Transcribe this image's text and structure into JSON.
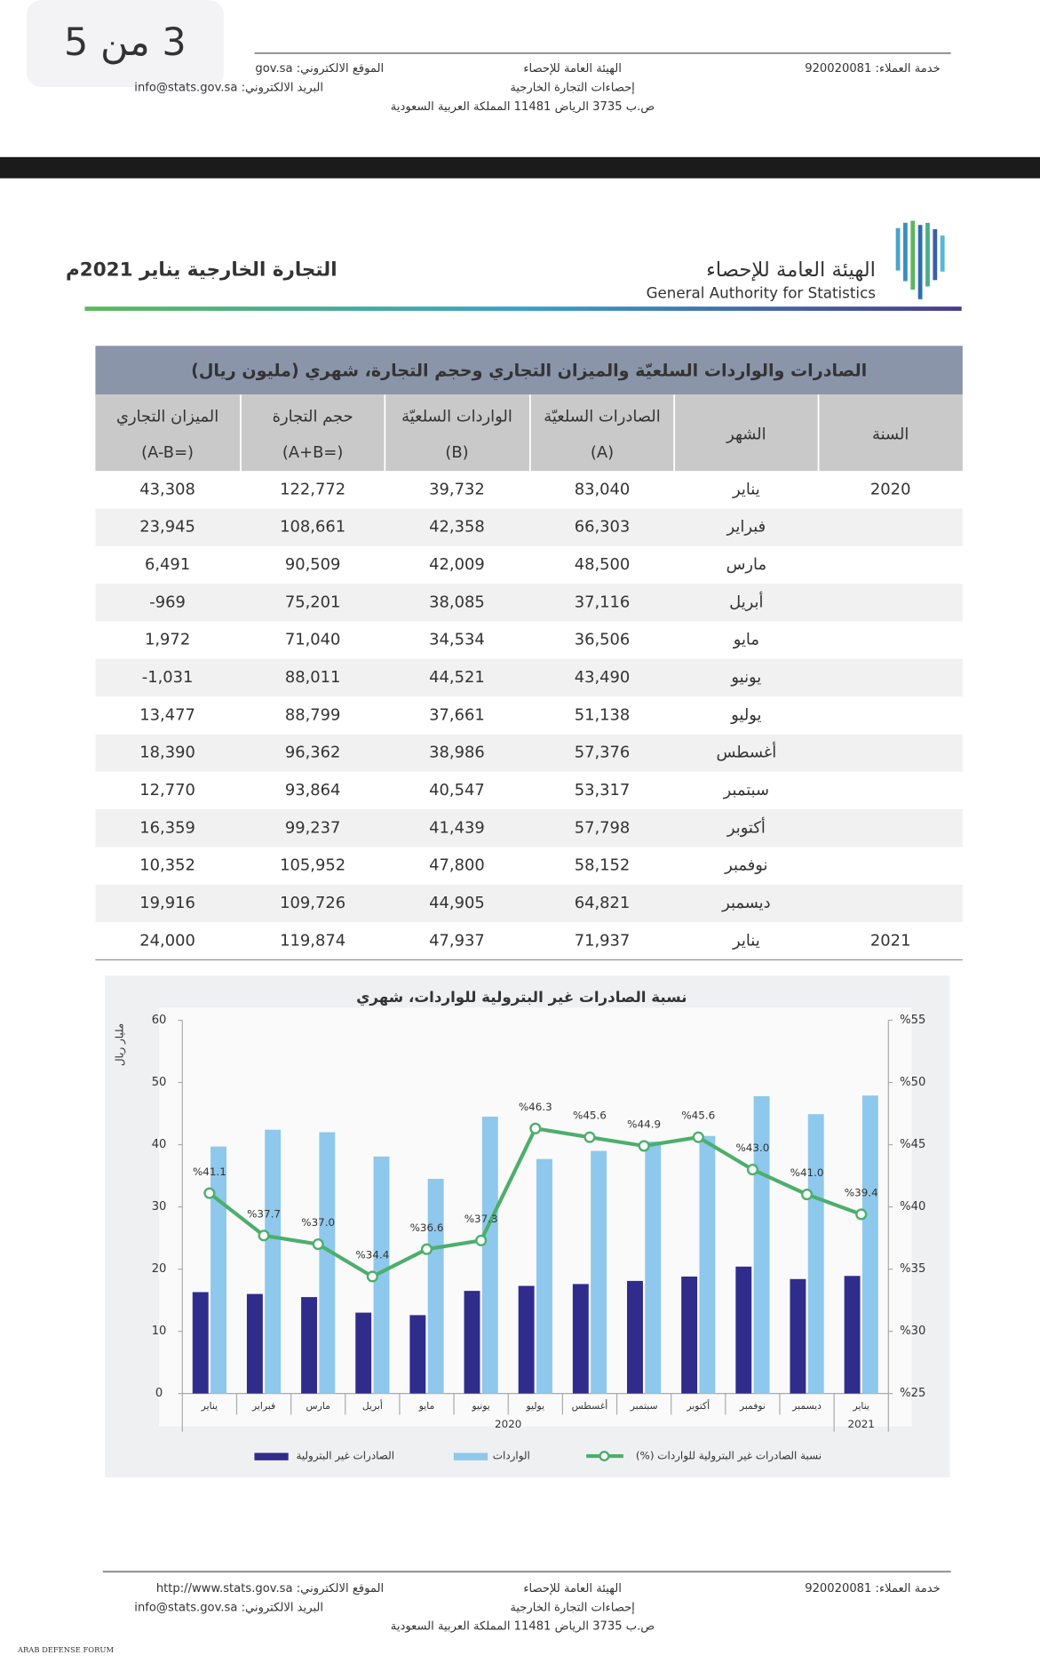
{
  "page_badge": "3 من 5",
  "top_header": {
    "customer_service": "خدمة العملاء: 920020081",
    "org": "الهيئة العامة للإحصاء",
    "dept": "إحصاءات التجارة الخارجية",
    "address": "ص.ب 3735 الرياض 11481 المملكة العربية السعودية",
    "website": "الموقع الالكتروني: gov.sa",
    "email": "البريد الالكتروني: info@stats.gov.sa"
  },
  "logo": {
    "arabic": "الهيئة العامة للإحصاء",
    "english": "General Authority for Statistics"
  },
  "report_title": "التجارة الخارجية يناير 2021م",
  "table": {
    "title": "الصادرات والواردات السلعيّة والميزان التجاري وحجم التجارة، شهري (مليون ريال)",
    "headers": [
      [
        "السنة"
      ],
      [
        "الشهر"
      ],
      [
        "الصادرات السلعيّة",
        "(A)"
      ],
      [
        "الواردات السلعيّة",
        "(B)"
      ],
      [
        "حجم التجارة",
        "(=A+B)"
      ],
      [
        "الميزان التجاري",
        "(=A-B)"
      ]
    ],
    "rows": [
      [
        "2020",
        "يناير",
        "83,040",
        "39,732",
        "122,772",
        "43,308"
      ],
      [
        null,
        "فبراير",
        "66,303",
        "42,358",
        "108,661",
        "23,945"
      ],
      [
        null,
        "مارس",
        "48,500",
        "42,009",
        "90,509",
        "6,491"
      ],
      [
        null,
        "أبريل",
        "37,116",
        "38,085",
        "75,201",
        "-969"
      ],
      [
        null,
        "مايو",
        "36,506",
        "34,534",
        "71,040",
        "1,972"
      ],
      [
        null,
        "يونيو",
        "43,490",
        "44,521",
        "88,011",
        "-1,031"
      ],
      [
        null,
        "يوليو",
        "51,138",
        "37,661",
        "88,799",
        "13,477"
      ],
      [
        null,
        "أغسطس",
        "57,376",
        "38,986",
        "96,362",
        "18,390"
      ],
      [
        null,
        "سبتمبر",
        "53,317",
        "40,547",
        "93,864",
        "12,770"
      ],
      [
        null,
        "أكتوبر",
        "57,798",
        "41,439",
        "99,237",
        "16,359"
      ],
      [
        null,
        "نوفمبر",
        "58,152",
        "47,800",
        "105,952",
        "10,352"
      ],
      [
        null,
        "ديسمبر",
        "64,821",
        "44,905",
        "109,726",
        "19,916"
      ],
      [
        "2021",
        "يناير",
        "71,937",
        "47,937",
        "119,874",
        "24,000"
      ]
    ]
  },
  "chart": {
    "type": "bar",
    "title": "نسبة الصادرات غير البترولية للواردات، شهري",
    "ylabel": "مليار ريال",
    "categories": [
      "يناير",
      "فبراير",
      "مارس",
      "أبريل",
      "مايو",
      "يونيو",
      "يوليو",
      "أغسطس",
      "سبتمبر",
      "أكتوبر",
      "نوفمبر",
      "ديسمبر",
      "يناير"
    ],
    "year_labels": [
      "2020",
      "2021"
    ],
    "ylim": [
      0,
      60
    ],
    "yticks": [
      0,
      10,
      20,
      30,
      40,
      50,
      60
    ],
    "y2lim": [
      25,
      55
    ],
    "y2ticks": [
      {
        "value": 25,
        "label": "%25"
      },
      {
        "value": 30,
        "label": "%30"
      },
      {
        "value": 35,
        "label": "%35"
      },
      {
        "value": 40,
        "label": "%40"
      },
      {
        "value": 45,
        "label": "%45"
      },
      {
        "value": 50,
        "label": "%50"
      },
      {
        "value": 55,
        "label": "%55"
      }
    ],
    "series": [
      {
        "name": "الصادرات غير البترولية",
        "color": "#2f2c8c",
        "type": "bar",
        "values": [
          16.3,
          16.0,
          15.5,
          13.0,
          12.6,
          16.5,
          17.3,
          17.6,
          18.1,
          18.8,
          20.4,
          18.4,
          18.9
        ]
      },
      {
        "name": "الواردات",
        "color": "#8ec8ec",
        "type": "bar",
        "values": [
          39.7,
          42.4,
          42.0,
          38.1,
          34.5,
          44.5,
          37.7,
          39.0,
          40.5,
          41.4,
          47.8,
          44.9,
          47.9
        ]
      },
      {
        "name": "نسبة الصادرات غير البترولية للواردات (%)",
        "color": "#4caf6c",
        "type": "line",
        "axis": "y2",
        "values": [
          41.1,
          37.7,
          37.0,
          34.4,
          36.6,
          37.3,
          46.3,
          45.6,
          44.9,
          45.6,
          43.0,
          41.0,
          39.4
        ],
        "value_labels": [
          "%41.1",
          "%37.7",
          "%37.0",
          "%34.4",
          "%36.6",
          "%37.3",
          "%46.3",
          "%45.6",
          "%44.9",
          "%45.6",
          "%43.0",
          "%41.0",
          "%39.4"
        ]
      }
    ]
  },
  "bottom_header": {
    "customer_service": "خدمة العملاء: 920020081",
    "org": "الهيئة العامة للإحصاء",
    "dept": "إحصاءات التجارة الخارجية",
    "address": "ص.ب 3735 الرياض 11481 المملكة العربية السعودية",
    "website": "الموقع الالكتروني: http://www.stats.gov.sa",
    "email": "البريد الالكتروني: info@stats.gov.sa"
  },
  "watermark": "ARAB DEFENSE FORUM"
}
